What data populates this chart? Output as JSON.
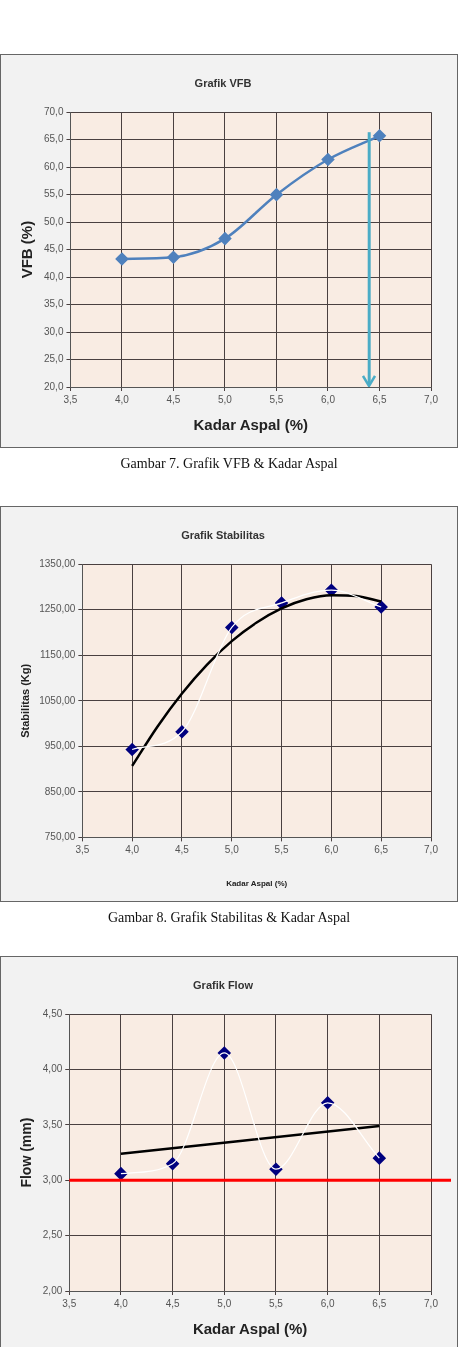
{
  "chart_data": [
    {
      "type": "line",
      "title": "Grafik VFB",
      "xlabel": "Kadar Aspal (%)",
      "ylabel": "VFB (%)",
      "marker": "diamond",
      "grid": true,
      "legend": false,
      "x": [
        4.0,
        4.5,
        5.0,
        5.5,
        6.0,
        6.5
      ],
      "series": [
        {
          "color": "#4f81bd",
          "values": [
            43.3,
            43.6,
            47.0,
            55.0,
            61.4,
            65.7
          ]
        }
      ],
      "ref_lines": [
        {
          "axis": "x",
          "value": 6.4,
          "color": "#4bacc6"
        }
      ],
      "xlim": [
        3.5,
        7.0
      ],
      "xticks": [
        {
          "value": 3.5,
          "label": "3,5"
        },
        {
          "value": 4.0,
          "label": "4,0"
        },
        {
          "value": 4.5,
          "label": "4,5"
        },
        {
          "value": 5.0,
          "label": "5,0"
        },
        {
          "value": 5.5,
          "label": "5,5"
        },
        {
          "value": 6.0,
          "label": "6,0"
        },
        {
          "value": 6.5,
          "label": "6,5"
        },
        {
          "value": 7.0,
          "label": "7,0"
        }
      ],
      "ylim": [
        20,
        70
      ],
      "yticks": [
        {
          "value": 20,
          "label": "20,0"
        },
        {
          "value": 25,
          "label": "25,0"
        },
        {
          "value": 30,
          "label": "30,0"
        },
        {
          "value": 35,
          "label": "35,0"
        },
        {
          "value": 40,
          "label": "40,0"
        },
        {
          "value": 45,
          "label": "45,0"
        },
        {
          "value": 50,
          "label": "50,0"
        },
        {
          "value": 55,
          "label": "55,0"
        },
        {
          "value": 60,
          "label": "60,0"
        },
        {
          "value": 65,
          "label": "65,0"
        },
        {
          "value": 70,
          "label": "70,0"
        }
      ],
      "annotations": [
        "Gambar 7. Grafik VFB & Kadar Aspal"
      ]
    },
    {
      "type": "scatter",
      "title": "Grafik Stabilitas",
      "xlabel": "Kadar Aspal (%)",
      "ylabel": "Stabilitas (Kg)",
      "marker": "diamond",
      "grid": true,
      "legend": false,
      "x": [
        4.0,
        4.5,
        5.0,
        5.5,
        6.0,
        6.5
      ],
      "series": [
        {
          "type": "line",
          "marker": "none",
          "color": "#ffffff",
          "values": [
            943,
            982,
            1211,
            1265,
            1293,
            1256
          ]
        },
        {
          "type": "line",
          "marker": "none",
          "color": "#000000",
          "x": [
            4.0,
            4.25,
            4.5,
            4.75,
            5.0,
            5.25,
            5.5,
            5.75,
            6.0,
            6.25,
            6.5
          ],
          "values": [
            907,
            992,
            1066,
            1129,
            1181,
            1222,
            1253,
            1273,
            1282,
            1280,
            1268
          ]
        },
        {
          "type": "scatter",
          "color": "#00007f",
          "values": [
            943,
            982,
            1211,
            1265,
            1293,
            1256
          ]
        }
      ],
      "xlim": [
        3.5,
        7.0
      ],
      "xticks": [
        {
          "value": 3.5,
          "label": "3,5"
        },
        {
          "value": 4.0,
          "label": "4,0"
        },
        {
          "value": 4.5,
          "label": "4,5"
        },
        {
          "value": 5.0,
          "label": "5,0"
        },
        {
          "value": 5.5,
          "label": "5,5"
        },
        {
          "value": 6.0,
          "label": "6,0"
        },
        {
          "value": 6.5,
          "label": "6,5"
        },
        {
          "value": 7.0,
          "label": "7,0"
        }
      ],
      "ylim": [
        750,
        1350
      ],
      "yticks": [
        {
          "value": 750,
          "label": "750,00"
        },
        {
          "value": 850,
          "label": "850,00"
        },
        {
          "value": 950,
          "label": "950,00"
        },
        {
          "value": 1050,
          "label": "1050,00"
        },
        {
          "value": 1150,
          "label": "1150,00"
        },
        {
          "value": 1250,
          "label": "1250,00"
        },
        {
          "value": 1350,
          "label": "1350,00"
        }
      ],
      "annotations": [
        "Gambar 8. Grafik Stabilitas & Kadar Aspal"
      ]
    },
    {
      "type": "scatter",
      "title": "Grafik Flow",
      "xlabel": "Kadar Aspal (%)",
      "ylabel": "Flow (mm)",
      "marker": "diamond",
      "grid": true,
      "legend": false,
      "x": [
        4.0,
        4.5,
        5.0,
        5.5,
        6.0,
        6.5
      ],
      "series": [
        {
          "type": "line",
          "marker": "none",
          "color": "#ffffff",
          "values": [
            3.06,
            3.15,
            4.15,
            3.1,
            3.7,
            3.2
          ]
        },
        {
          "type": "line",
          "marker": "none",
          "color": "#000000",
          "x": [
            4.0,
            6.5
          ],
          "values": [
            3.24,
            3.49
          ]
        },
        {
          "type": "scatter",
          "color": "#00007f",
          "values": [
            3.06,
            3.15,
            4.15,
            3.1,
            3.7,
            3.2
          ]
        }
      ],
      "ref_lines": [
        {
          "axis": "y",
          "value": 3.0,
          "color": "#ff0000"
        }
      ],
      "xlim": [
        3.5,
        7.0
      ],
      "xticks": [
        {
          "value": 3.5,
          "label": "3,5"
        },
        {
          "value": 4.0,
          "label": "4,0"
        },
        {
          "value": 4.5,
          "label": "4,5"
        },
        {
          "value": 5.0,
          "label": "5,0"
        },
        {
          "value": 5.5,
          "label": "5,5"
        },
        {
          "value": 6.0,
          "label": "6,0"
        },
        {
          "value": 6.5,
          "label": "6,5"
        },
        {
          "value": 7.0,
          "label": "7,0"
        }
      ],
      "ylim": [
        2.0,
        4.5
      ],
      "yticks": [
        {
          "value": 2.0,
          "label": "2,00"
        },
        {
          "value": 2.5,
          "label": "2,50"
        },
        {
          "value": 3.0,
          "label": "3,00"
        },
        {
          "value": 3.5,
          "label": "3,50"
        },
        {
          "value": 4.0,
          "label": "4,00"
        },
        {
          "value": 4.5,
          "label": "4,50"
        }
      ]
    }
  ]
}
